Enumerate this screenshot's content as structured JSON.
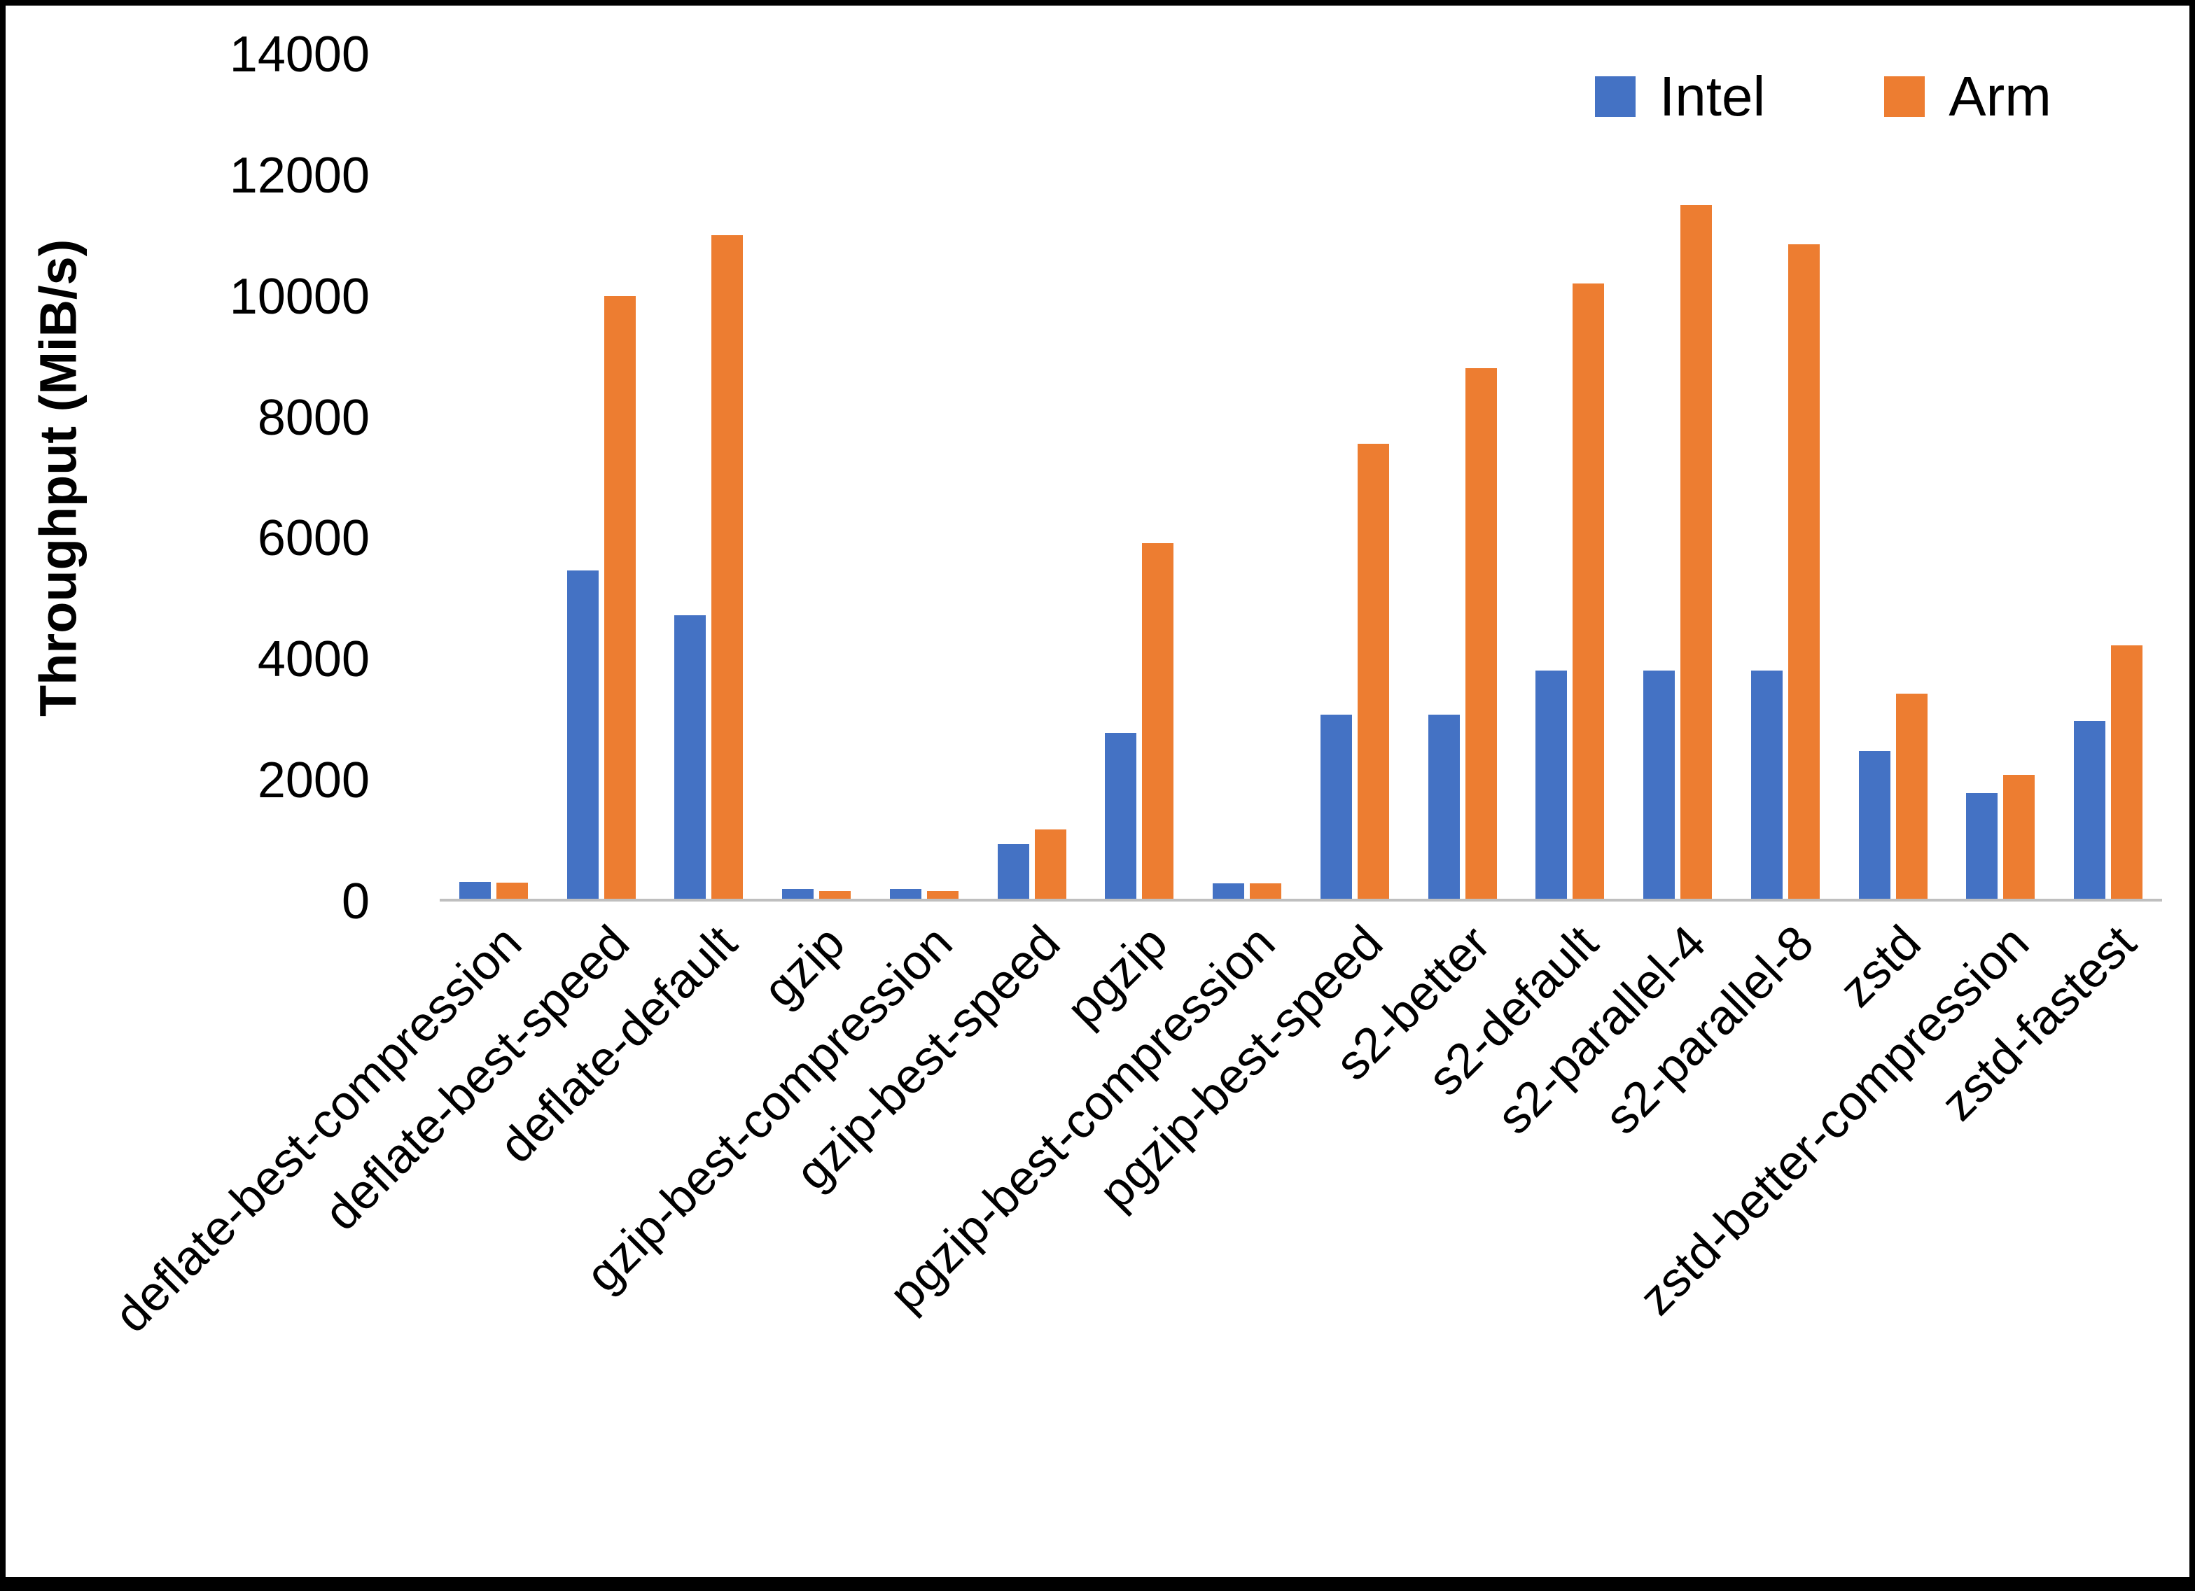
{
  "chart_data": {
    "type": "bar",
    "title": "",
    "xlabel": "",
    "ylabel": "Throughput (MiB/s)",
    "ylim": [
      0,
      14000
    ],
    "yticks": [
      0,
      2000,
      4000,
      6000,
      8000,
      10000,
      12000,
      14000
    ],
    "grid": false,
    "legend_position": "top-right",
    "categories": [
      "deflate-best-compression",
      "deflate-best-speed",
      "deflate-default",
      "gzip",
      "gzip-best-compression",
      "gzip-best-speed",
      "pgzip",
      "pgzip-best-compression",
      "pgzip-best-speed",
      "s2-better",
      "s2-default",
      "s2-parallel-4",
      "s2-parallel-8",
      "zstd",
      "zstd-better-compression",
      "zstd-fastest"
    ],
    "series": [
      {
        "name": "Intel",
        "color": "#4472C4",
        "values": [
          280,
          5450,
          4700,
          160,
          160,
          900,
          2750,
          250,
          3050,
          3050,
          3780,
          3780,
          3780,
          2450,
          1750,
          2950
        ]
      },
      {
        "name": "Arm",
        "color": "#ED7D31",
        "values": [
          270,
          10000,
          11000,
          130,
          130,
          1150,
          5900,
          260,
          7550,
          8800,
          10200,
          11500,
          10850,
          3400,
          2050,
          4200
        ]
      }
    ]
  },
  "colors": {
    "axis_line": "#bfbfbf",
    "text": "#000000",
    "background": "#ffffff",
    "frame_border": "#000000"
  }
}
